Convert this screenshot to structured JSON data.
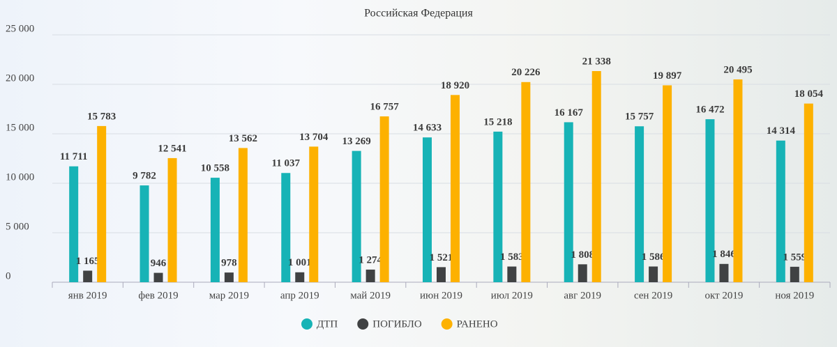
{
  "chart_data": {
    "type": "bar",
    "title": "Российская Федерация",
    "categories": [
      "янв 2019",
      "фев 2019",
      "мар 2019",
      "апр 2019",
      "май 2019",
      "июн 2019",
      "июл 2019",
      "авг 2019",
      "сен 2019",
      "окт 2019",
      "ноя 2019"
    ],
    "series": [
      {
        "name": "ДТП",
        "color": "#17b3b6",
        "values": [
          11711,
          9782,
          10558,
          11037,
          13269,
          14633,
          15218,
          16167,
          15757,
          16472,
          14314
        ],
        "value_labels": [
          "11 711",
          "9 782",
          "10 558",
          "11 037",
          "13 269",
          "14 633",
          "15 218",
          "16 167",
          "15 757",
          "16 472",
          "14 314"
        ]
      },
      {
        "name": "ПОГИБЛО",
        "color": "#404243",
        "values": [
          1165,
          946,
          978,
          1001,
          1274,
          1521,
          1583,
          1808,
          1586,
          1846,
          1559
        ],
        "value_labels": [
          "1 165",
          "946",
          "978",
          "1 001",
          "1 274",
          "1 521",
          "1 583",
          "1 808",
          "1 586",
          "1 846",
          "1 559"
        ]
      },
      {
        "name": "РАНЕНО",
        "color": "#fdb100",
        "values": [
          15783,
          12541,
          13562,
          13704,
          16757,
          18920,
          20226,
          21338,
          19897,
          20495,
          18054
        ],
        "value_labels": [
          "15 783",
          "12 541",
          "13 562",
          "13 704",
          "16 757",
          "18 920",
          "20 226",
          "21 338",
          "19 897",
          "20 495",
          "18 054"
        ]
      }
    ],
    "ylim": [
      0,
      25000
    ],
    "yticks": [
      0,
      {
        "value": 5000,
        "label": "5 000"
      },
      {
        "value": 10000,
        "label": "10 000"
      },
      {
        "value": 15000,
        "label": "15 000"
      },
      {
        "value": 20000,
        "label": "20 000"
      },
      {
        "value": 25000,
        "label": "25 000"
      }
    ],
    "grid": true,
    "legend": "bottom"
  }
}
